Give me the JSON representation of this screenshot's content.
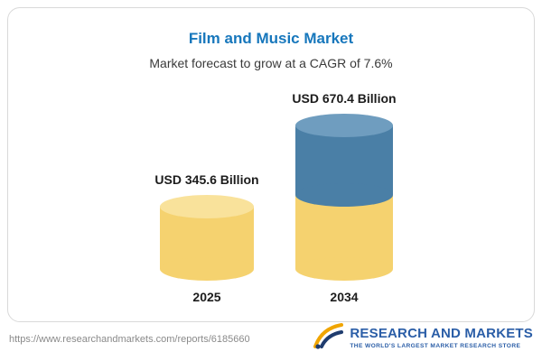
{
  "header": {
    "title": "Film and Music Market",
    "subtitle": "Market forecast to grow at a CAGR of 7.6%"
  },
  "chart_data": {
    "type": "bar",
    "title": "Film and Music Market",
    "subtitle": "Market forecast to grow at a CAGR of 7.6%",
    "cagr_percent": 7.6,
    "unit": "USD Billion",
    "categories": [
      "2025",
      "2034"
    ],
    "values": [
      345.6,
      670.4
    ],
    "value_labels": [
      "USD 345.6 Billion",
      "USD 670.4 Billion"
    ],
    "series": [
      {
        "name": "2025 base",
        "values": [
          345.6,
          345.6
        ],
        "color": "#f5d26f"
      },
      {
        "name": "growth to 2034",
        "values": [
          0,
          324.8
        ],
        "color": "#4a7fa6"
      }
    ],
    "legend_position": "none",
    "grid": false,
    "ylim": [
      0,
      670.4
    ],
    "colors": {
      "yellow_body": "#f5d26f",
      "yellow_cap": "#f9e29b",
      "blue_body": "#4a7fa6",
      "blue_cap": "#6f9dbf",
      "title_blue": "#1777bc"
    }
  },
  "footer": {
    "source_url": "https://www.researchandmarkets.com/reports/6185660",
    "logo_title": "RESEARCH AND MARKETS",
    "logo_tagline": "THE WORLD'S LARGEST MARKET RESEARCH STORE"
  }
}
